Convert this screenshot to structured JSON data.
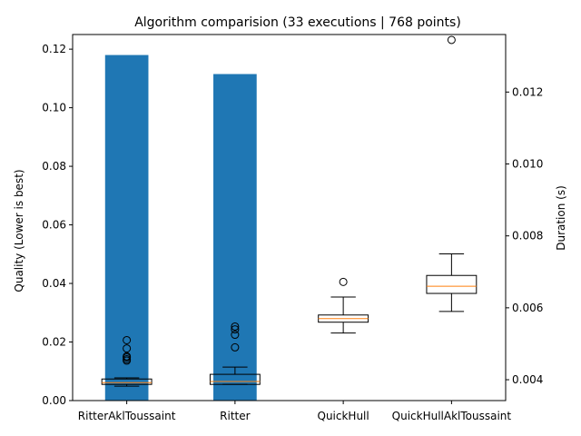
{
  "chart_data": {
    "type": "bar",
    "title": "Algorithm comparision (33 executions | 768 points)",
    "categories": [
      "RitterAklToussaint",
      "Ritter",
      "QuickHull",
      "QuickHullAklToussaint"
    ],
    "quality": {
      "ylabel": "Quality (Lower is best)",
      "ylim": [
        0,
        0.125
      ],
      "ticks": [
        "0.00",
        "0.02",
        "0.04",
        "0.06",
        "0.08",
        "0.10",
        "0.12"
      ],
      "tick_values": [
        0,
        0.02,
        0.04,
        0.06,
        0.08,
        0.1,
        0.12
      ],
      "values": [
        0.118,
        0.1115,
        0,
        0
      ],
      "color": "#1f77b4"
    },
    "duration": {
      "ylabel": "Duration (s)",
      "ylim": [
        0.00342,
        0.0136
      ],
      "ticks": [
        "0.004",
        "0.006",
        "0.008",
        "0.010",
        "0.012"
      ],
      "tick_values": [
        0.004,
        0.006,
        0.008,
        0.01,
        0.012
      ],
      "boxes": [
        {
          "whisker_low": 0.00382,
          "q1": 0.00387,
          "median": 0.00392,
          "q3": 0.00402,
          "whisker_high": 0.00405,
          "outliers": [
            0.00453,
            0.00457,
            0.00462,
            0.00465,
            0.00487,
            0.0051
          ]
        },
        {
          "whisker_low": 0.00387,
          "q1": 0.00387,
          "median": 0.00395,
          "q3": 0.00415,
          "whisker_high": 0.00435,
          "outliers": [
            0.0049,
            0.00525,
            0.0054,
            0.00548
          ]
        },
        {
          "whisker_low": 0.0053,
          "q1": 0.0056,
          "median": 0.0057,
          "q3": 0.0058,
          "whisker_high": 0.0063,
          "outliers": [
            0.00672
          ]
        },
        {
          "whisker_low": 0.0059,
          "q1": 0.0064,
          "median": 0.0066,
          "q3": 0.0069,
          "whisker_high": 0.0075,
          "outliers": [
            0.01345
          ]
        }
      ],
      "box_color": "#000000",
      "median_color": "#ff7f0e"
    },
    "legend": "none",
    "grid": false
  }
}
